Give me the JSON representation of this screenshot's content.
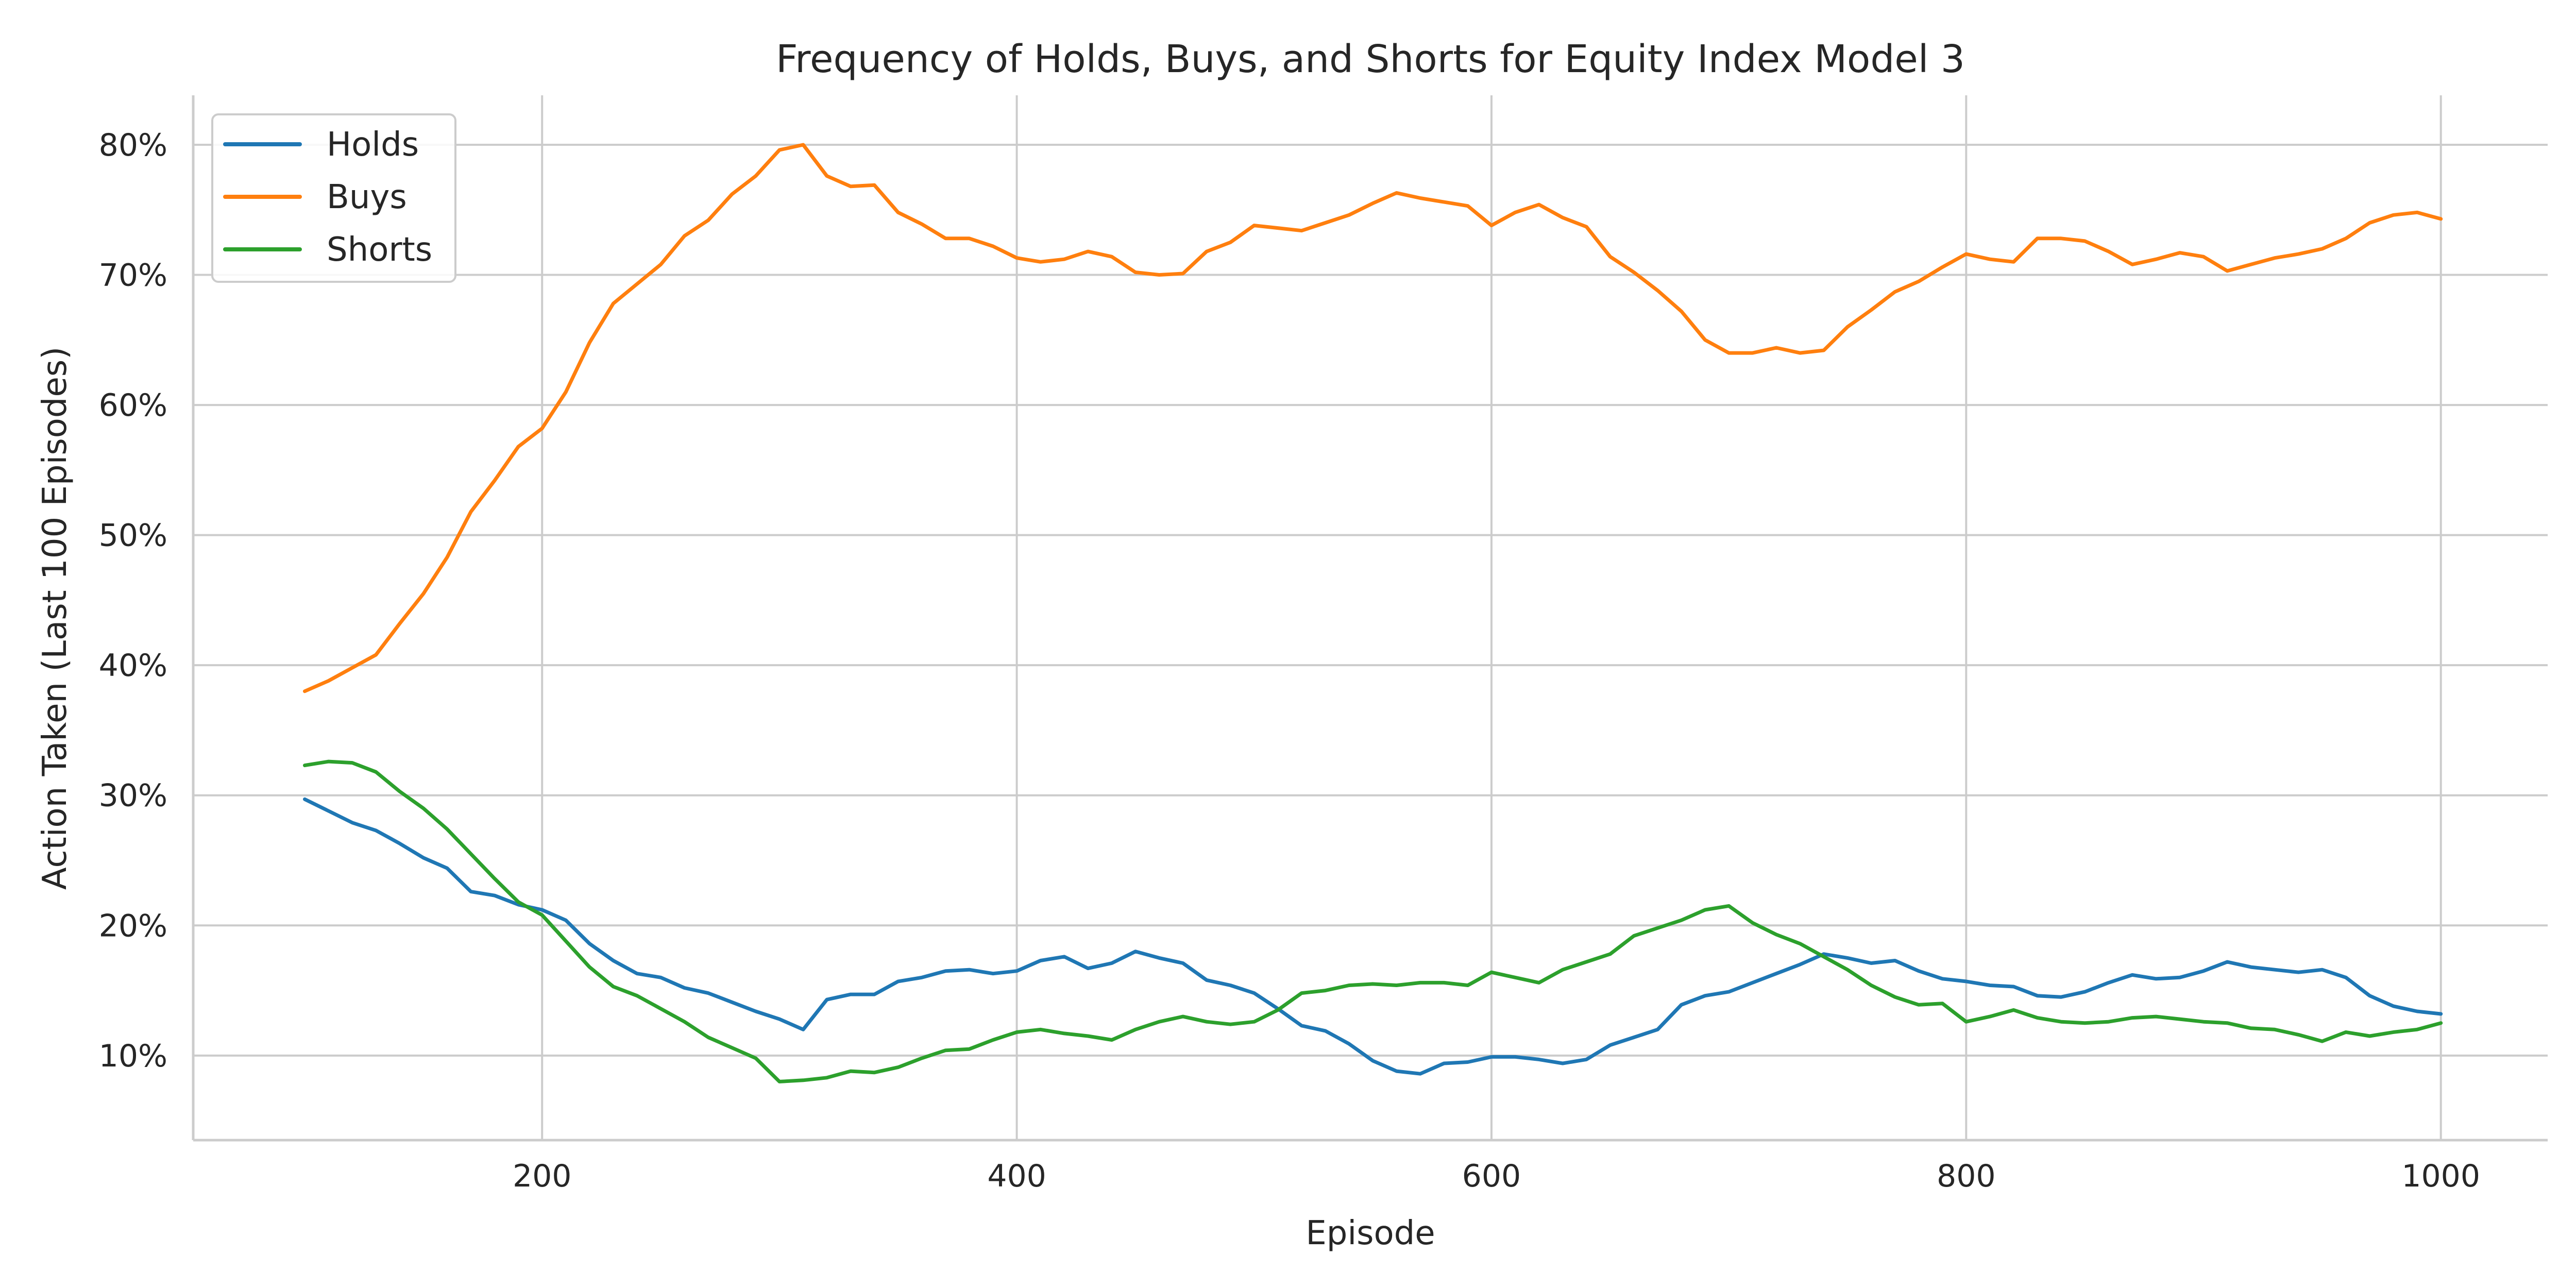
{
  "colors": {
    "holds": "#1f77b4",
    "buys": "#ff7f0e",
    "shorts": "#2ca02c",
    "grid": "#cccccc",
    "text": "#262626"
  },
  "chart_data": {
    "type": "line",
    "title": "Frequency of Holds, Buys, and Shorts for Equity Index Model 3",
    "xlabel": "Episode",
    "ylabel": "Action Taken (Last 100 Episodes)",
    "xlim": [
      53,
      1045
    ],
    "ylim": [
      3.5,
      83.8
    ],
    "x_ticks": [
      200,
      400,
      600,
      800,
      1000
    ],
    "y_ticks": [
      10,
      20,
      30,
      40,
      50,
      60,
      70,
      80
    ],
    "y_tick_labels": [
      "10%",
      "20%",
      "30%",
      "40%",
      "50%",
      "60%",
      "70%",
      "80%"
    ],
    "grid": true,
    "legend_position": "top-left",
    "series": [
      {
        "name": "Holds",
        "color_key": "holds",
        "points": [
          [
            100,
            29.7
          ],
          [
            110,
            28.8
          ],
          [
            120,
            27.9
          ],
          [
            130,
            27.3
          ],
          [
            140,
            26.3
          ],
          [
            150,
            25.2
          ],
          [
            160,
            24.4
          ],
          [
            170,
            22.6
          ],
          [
            180,
            22.3
          ],
          [
            190,
            21.6
          ],
          [
            200,
            21.2
          ],
          [
            210,
            20.4
          ],
          [
            220,
            18.6
          ],
          [
            230,
            17.3
          ],
          [
            240,
            16.3
          ],
          [
            250,
            16.0
          ],
          [
            260,
            15.2
          ],
          [
            270,
            14.8
          ],
          [
            280,
            14.1
          ],
          [
            290,
            13.4
          ],
          [
            300,
            12.8
          ],
          [
            310,
            12.0
          ],
          [
            320,
            14.3
          ],
          [
            330,
            14.7
          ],
          [
            340,
            14.7
          ],
          [
            350,
            15.7
          ],
          [
            360,
            16.0
          ],
          [
            370,
            16.5
          ],
          [
            380,
            16.6
          ],
          [
            390,
            16.3
          ],
          [
            400,
            16.5
          ],
          [
            410,
            17.3
          ],
          [
            420,
            17.6
          ],
          [
            430,
            16.7
          ],
          [
            440,
            17.1
          ],
          [
            450,
            18.0
          ],
          [
            460,
            17.5
          ],
          [
            470,
            17.1
          ],
          [
            480,
            15.8
          ],
          [
            490,
            15.4
          ],
          [
            500,
            14.8
          ],
          [
            510,
            13.6
          ],
          [
            520,
            12.3
          ],
          [
            530,
            11.9
          ],
          [
            540,
            10.9
          ],
          [
            550,
            9.6
          ],
          [
            560,
            8.8
          ],
          [
            570,
            8.6
          ],
          [
            580,
            9.4
          ],
          [
            590,
            9.5
          ],
          [
            600,
            9.9
          ],
          [
            610,
            9.9
          ],
          [
            620,
            9.7
          ],
          [
            630,
            9.4
          ],
          [
            640,
            9.7
          ],
          [
            650,
            10.8
          ],
          [
            660,
            11.4
          ],
          [
            670,
            12.0
          ],
          [
            680,
            13.9
          ],
          [
            690,
            14.6
          ],
          [
            700,
            14.9
          ],
          [
            710,
            15.6
          ],
          [
            720,
            16.3
          ],
          [
            730,
            17.0
          ],
          [
            740,
            17.8
          ],
          [
            750,
            17.5
          ],
          [
            760,
            17.1
          ],
          [
            770,
            17.3
          ],
          [
            780,
            16.5
          ],
          [
            790,
            15.9
          ],
          [
            800,
            15.7
          ],
          [
            810,
            15.4
          ],
          [
            820,
            15.3
          ],
          [
            830,
            14.6
          ],
          [
            840,
            14.5
          ],
          [
            850,
            14.9
          ],
          [
            860,
            15.6
          ],
          [
            870,
            16.2
          ],
          [
            880,
            15.9
          ],
          [
            890,
            16.0
          ],
          [
            900,
            16.5
          ],
          [
            910,
            17.2
          ],
          [
            920,
            16.8
          ],
          [
            930,
            16.6
          ],
          [
            940,
            16.4
          ],
          [
            950,
            16.6
          ],
          [
            960,
            16.0
          ],
          [
            970,
            14.6
          ],
          [
            980,
            13.8
          ],
          [
            990,
            13.4
          ],
          [
            1000,
            13.2
          ]
        ]
      },
      {
        "name": "Buys",
        "color_key": "buys",
        "points": [
          [
            100,
            38.0
          ],
          [
            110,
            38.8
          ],
          [
            120,
            39.8
          ],
          [
            130,
            40.8
          ],
          [
            140,
            43.2
          ],
          [
            150,
            45.5
          ],
          [
            160,
            48.3
          ],
          [
            170,
            51.8
          ],
          [
            180,
            54.2
          ],
          [
            190,
            56.8
          ],
          [
            200,
            58.2
          ],
          [
            210,
            61.0
          ],
          [
            220,
            64.8
          ],
          [
            230,
            67.8
          ],
          [
            240,
            69.3
          ],
          [
            250,
            70.8
          ],
          [
            260,
            73.0
          ],
          [
            270,
            74.2
          ],
          [
            280,
            76.2
          ],
          [
            290,
            77.6
          ],
          [
            300,
            79.6
          ],
          [
            310,
            80.0
          ],
          [
            320,
            77.6
          ],
          [
            330,
            76.8
          ],
          [
            340,
            76.9
          ],
          [
            350,
            74.8
          ],
          [
            360,
            73.9
          ],
          [
            370,
            72.8
          ],
          [
            380,
            72.8
          ],
          [
            390,
            72.2
          ],
          [
            400,
            71.3
          ],
          [
            410,
            71.0
          ],
          [
            420,
            71.2
          ],
          [
            430,
            71.8
          ],
          [
            440,
            71.4
          ],
          [
            450,
            70.2
          ],
          [
            460,
            70.0
          ],
          [
            470,
            70.1
          ],
          [
            480,
            71.8
          ],
          [
            490,
            72.5
          ],
          [
            500,
            73.8
          ],
          [
            510,
            73.6
          ],
          [
            520,
            73.4
          ],
          [
            530,
            74.0
          ],
          [
            540,
            74.6
          ],
          [
            550,
            75.5
          ],
          [
            560,
            76.3
          ],
          [
            570,
            75.9
          ],
          [
            580,
            75.6
          ],
          [
            590,
            75.3
          ],
          [
            600,
            73.8
          ],
          [
            610,
            74.8
          ],
          [
            620,
            75.4
          ],
          [
            630,
            74.4
          ],
          [
            640,
            73.7
          ],
          [
            650,
            71.4
          ],
          [
            660,
            70.2
          ],
          [
            670,
            68.8
          ],
          [
            680,
            67.2
          ],
          [
            690,
            65.0
          ],
          [
            700,
            64.0
          ],
          [
            710,
            64.0
          ],
          [
            720,
            64.4
          ],
          [
            730,
            64.0
          ],
          [
            740,
            64.2
          ],
          [
            750,
            66.0
          ],
          [
            760,
            67.3
          ],
          [
            770,
            68.7
          ],
          [
            780,
            69.5
          ],
          [
            790,
            70.6
          ],
          [
            800,
            71.6
          ],
          [
            810,
            71.2
          ],
          [
            820,
            71.0
          ],
          [
            830,
            72.8
          ],
          [
            840,
            72.8
          ],
          [
            850,
            72.6
          ],
          [
            860,
            71.8
          ],
          [
            870,
            70.8
          ],
          [
            880,
            71.2
          ],
          [
            890,
            71.7
          ],
          [
            900,
            71.4
          ],
          [
            910,
            70.3
          ],
          [
            920,
            70.8
          ],
          [
            930,
            71.3
          ],
          [
            940,
            71.6
          ],
          [
            950,
            72.0
          ],
          [
            960,
            72.8
          ],
          [
            970,
            74.0
          ],
          [
            980,
            74.6
          ],
          [
            990,
            74.8
          ],
          [
            1000,
            74.3
          ]
        ]
      },
      {
        "name": "Shorts",
        "color_key": "shorts",
        "points": [
          [
            100,
            32.3
          ],
          [
            110,
            32.6
          ],
          [
            120,
            32.5
          ],
          [
            130,
            31.8
          ],
          [
            140,
            30.3
          ],
          [
            150,
            29.0
          ],
          [
            160,
            27.4
          ],
          [
            170,
            25.5
          ],
          [
            180,
            23.6
          ],
          [
            190,
            21.8
          ],
          [
            200,
            20.8
          ],
          [
            210,
            18.8
          ],
          [
            220,
            16.8
          ],
          [
            230,
            15.3
          ],
          [
            240,
            14.6
          ],
          [
            250,
            13.6
          ],
          [
            260,
            12.6
          ],
          [
            270,
            11.4
          ],
          [
            280,
            10.6
          ],
          [
            290,
            9.8
          ],
          [
            300,
            8.0
          ],
          [
            310,
            8.1
          ],
          [
            320,
            8.3
          ],
          [
            330,
            8.8
          ],
          [
            340,
            8.7
          ],
          [
            350,
            9.1
          ],
          [
            360,
            9.8
          ],
          [
            370,
            10.4
          ],
          [
            380,
            10.5
          ],
          [
            390,
            11.2
          ],
          [
            400,
            11.8
          ],
          [
            410,
            12.0
          ],
          [
            420,
            11.7
          ],
          [
            430,
            11.5
          ],
          [
            440,
            11.2
          ],
          [
            450,
            12.0
          ],
          [
            460,
            12.6
          ],
          [
            470,
            13.0
          ],
          [
            480,
            12.6
          ],
          [
            490,
            12.4
          ],
          [
            500,
            12.6
          ],
          [
            510,
            13.5
          ],
          [
            520,
            14.8
          ],
          [
            530,
            15.0
          ],
          [
            540,
            15.4
          ],
          [
            550,
            15.5
          ],
          [
            560,
            15.4
          ],
          [
            570,
            15.6
          ],
          [
            580,
            15.6
          ],
          [
            590,
            15.4
          ],
          [
            600,
            16.4
          ],
          [
            610,
            16.0
          ],
          [
            620,
            15.6
          ],
          [
            630,
            16.6
          ],
          [
            640,
            17.2
          ],
          [
            650,
            17.8
          ],
          [
            660,
            19.2
          ],
          [
            670,
            19.8
          ],
          [
            680,
            20.4
          ],
          [
            690,
            21.2
          ],
          [
            700,
            21.5
          ],
          [
            710,
            20.2
          ],
          [
            720,
            19.3
          ],
          [
            730,
            18.6
          ],
          [
            740,
            17.6
          ],
          [
            750,
            16.6
          ],
          [
            760,
            15.4
          ],
          [
            770,
            14.5
          ],
          [
            780,
            13.9
          ],
          [
            790,
            14.0
          ],
          [
            800,
            12.6
          ],
          [
            810,
            13.0
          ],
          [
            820,
            13.5
          ],
          [
            830,
            12.9
          ],
          [
            840,
            12.6
          ],
          [
            850,
            12.5
          ],
          [
            860,
            12.6
          ],
          [
            870,
            12.9
          ],
          [
            880,
            13.0
          ],
          [
            890,
            12.8
          ],
          [
            900,
            12.6
          ],
          [
            910,
            12.5
          ],
          [
            920,
            12.1
          ],
          [
            930,
            12.0
          ],
          [
            940,
            11.6
          ],
          [
            950,
            11.1
          ],
          [
            960,
            11.8
          ],
          [
            970,
            11.5
          ],
          [
            980,
            11.8
          ],
          [
            990,
            12.0
          ],
          [
            1000,
            12.5
          ]
        ]
      }
    ]
  }
}
